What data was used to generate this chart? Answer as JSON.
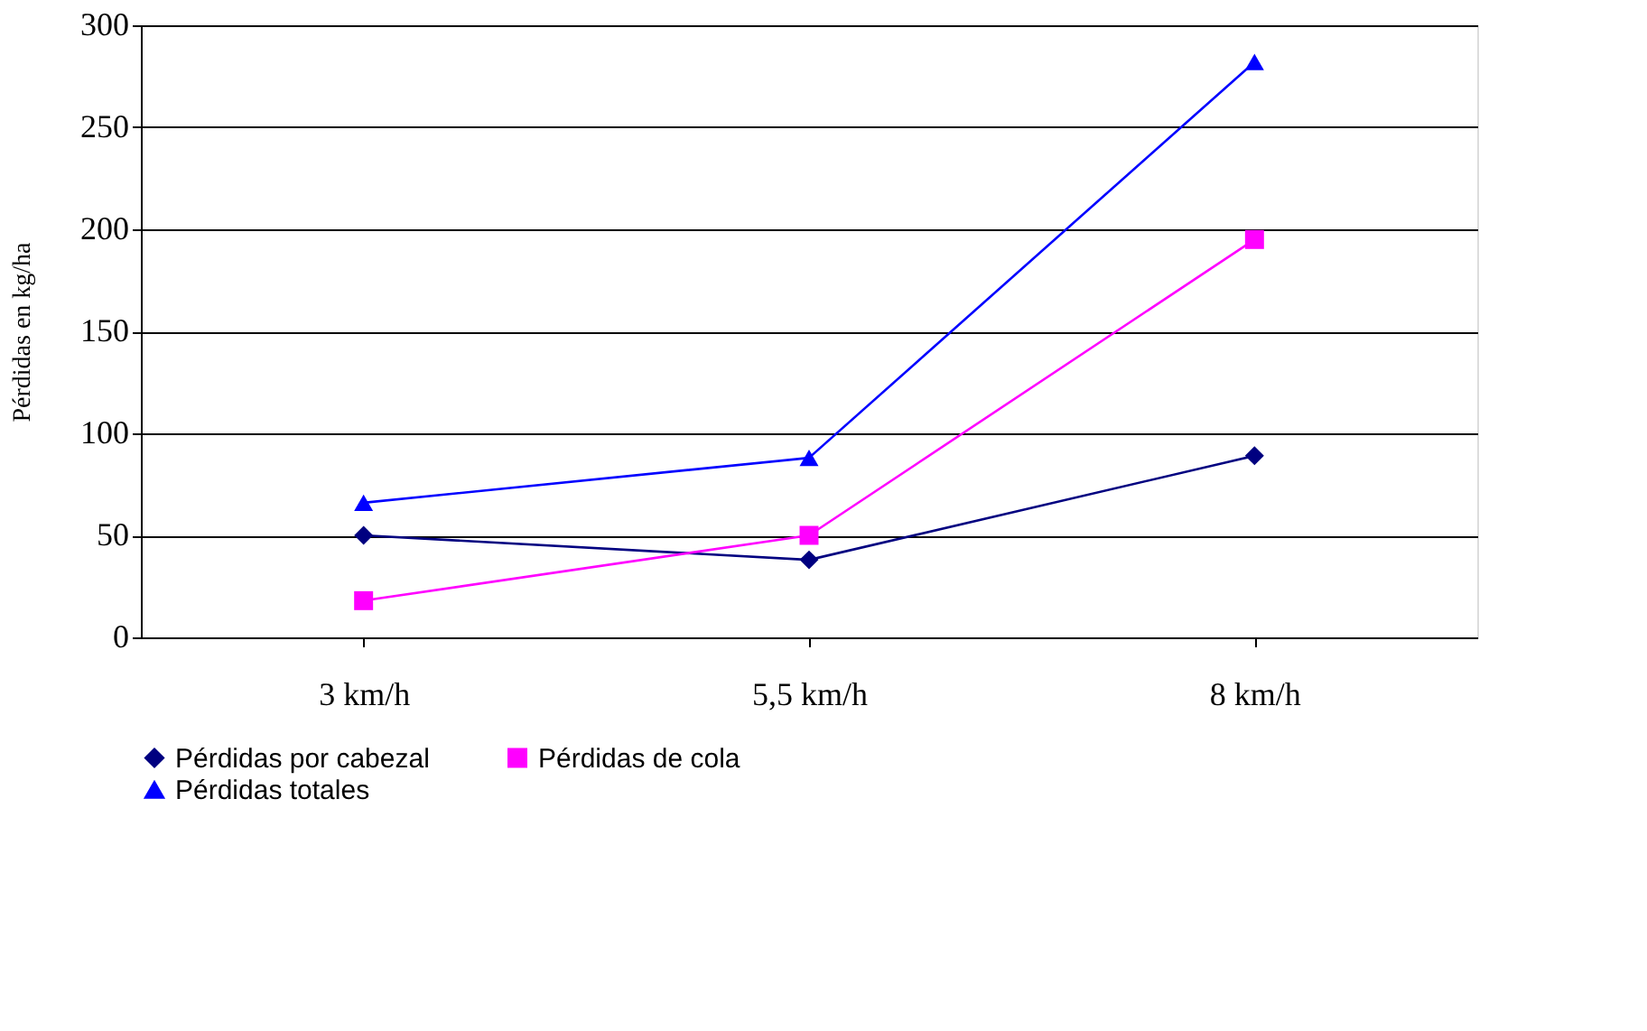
{
  "chart_data": {
    "type": "line",
    "ylabel": "Pérdidas en kg/ha",
    "categories": [
      "3 km/h",
      "5,5 km/h",
      "8 km/h"
    ],
    "series": [
      {
        "name": "Pérdidas por cabezal",
        "color": "#000080",
        "marker": "diamond",
        "values": [
          50,
          38,
          89
        ]
      },
      {
        "name": "Pérdidas de cola",
        "color": "#ff00ff",
        "marker": "square",
        "values": [
          18,
          50,
          195
        ]
      },
      {
        "name": "Pérdidas totales",
        "color": "#0000ff",
        "marker": "triangle",
        "values": [
          66,
          88,
          282
        ]
      }
    ],
    "ylim": [
      0,
      300
    ],
    "yticks": [
      0,
      50,
      100,
      150,
      200,
      250,
      300
    ],
    "grid": "y",
    "legend": "bottom",
    "line_style": "solid"
  }
}
